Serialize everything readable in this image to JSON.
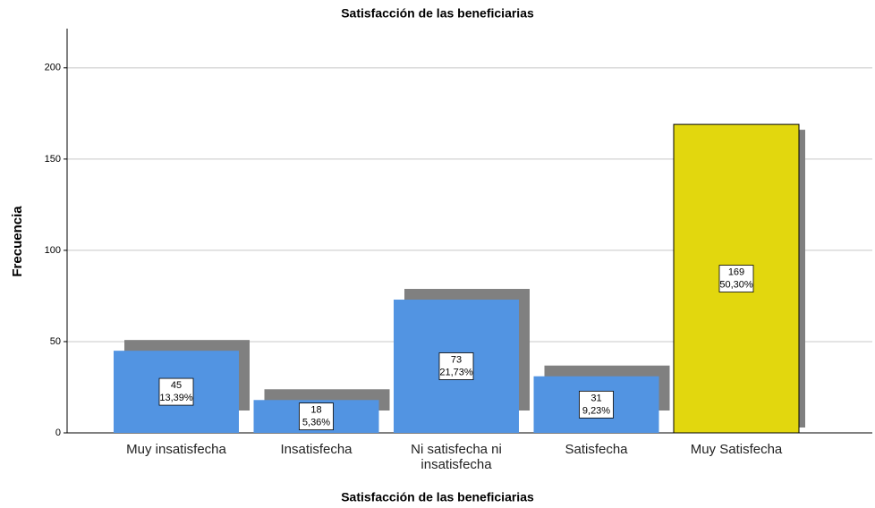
{
  "chart_data": {
    "type": "bar",
    "title": "Satisfacción de las beneficiarias",
    "xlabel": "Satisfacción de las beneficiarias",
    "ylabel": "Frecuencia",
    "categories": [
      "Muy insatisfecha",
      "Insatisfecha",
      "Ni satisfecha ni insatisfecha",
      "Satisfecha",
      "Muy Satisfecha"
    ],
    "values": [
      45,
      18,
      73,
      31,
      169
    ],
    "percent_labels": [
      "13,39%",
      "5,36%",
      "21,73%",
      "9,23%",
      "50,30%"
    ],
    "colors": [
      "#5294e2",
      "#5294e2",
      "#5294e2",
      "#5294e2",
      "#e2d70e"
    ],
    "shadow_color": "#808080",
    "ylim": [
      0,
      220
    ],
    "yticks": [
      0,
      50,
      100,
      150,
      200
    ],
    "grid": true
  }
}
